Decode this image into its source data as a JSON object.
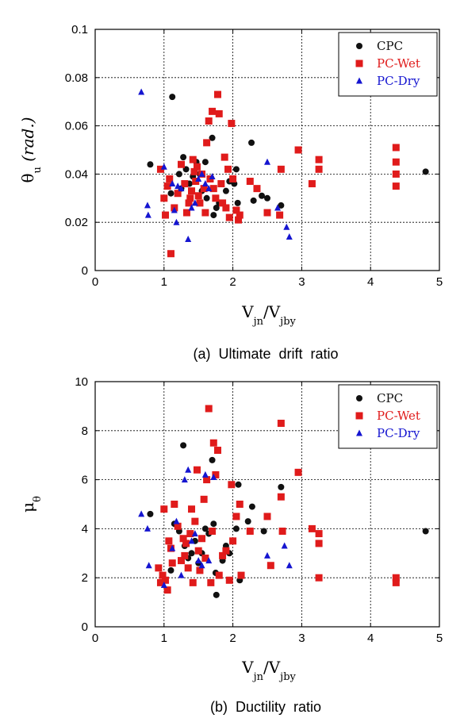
{
  "colors": {
    "CPC": "#111111",
    "PC-Wet": "#e01b1b",
    "PC-Dry": "#1515d0"
  },
  "chart_data": [
    {
      "type": "scatter",
      "caption": "(a)  Ultimate  drift  ratio",
      "xlabel": {
        "main": "V",
        "sub1": "jn",
        "mid": "/V",
        "sub2": "jby"
      },
      "ylabel": {
        "main": "θ",
        "sub": "u",
        "unit": "(rad.)"
      },
      "xlim": [
        0,
        5
      ],
      "ylim": [
        0,
        0.1
      ],
      "xticks": [
        0,
        1,
        2,
        3,
        4,
        5
      ],
      "yticks": [
        0,
        0.02,
        0.04,
        0.06,
        0.08,
        0.1
      ],
      "ytick_labels": [
        "0",
        "0.02",
        "0.04",
        "0.06",
        "0.08",
        "0.1"
      ],
      "grid": true,
      "legend": "top-right",
      "series": [
        {
          "name": "CPC",
          "marker": "circle",
          "points": [
            [
              0.8,
              0.044
            ],
            [
              1.12,
              0.072
            ],
            [
              1.22,
              0.04
            ],
            [
              1.28,
              0.047
            ],
            [
              1.32,
              0.042
            ],
            [
              1.37,
              0.036
            ],
            [
              1.42,
              0.039
            ],
            [
              1.47,
              0.045
            ],
            [
              1.52,
              0.04
            ],
            [
              1.6,
              0.045
            ],
            [
              1.62,
              0.03
            ],
            [
              1.7,
              0.055
            ],
            [
              1.72,
              0.023
            ],
            [
              1.76,
              0.026
            ],
            [
              1.8,
              0.028
            ],
            [
              1.9,
              0.033
            ],
            [
              1.95,
              0.037
            ],
            [
              2.02,
              0.036
            ],
            [
              2.05,
              0.042
            ],
            [
              2.07,
              0.028
            ],
            [
              2.27,
              0.053
            ],
            [
              2.3,
              0.029
            ],
            [
              2.42,
              0.031
            ],
            [
              2.5,
              0.03
            ],
            [
              2.7,
              0.027
            ],
            [
              1.1,
              0.032
            ],
            [
              1.25,
              0.034
            ],
            [
              1.55,
              0.033
            ],
            [
              4.8,
              0.041
            ]
          ]
        },
        {
          "name": "PC-Wet",
          "marker": "square",
          "points": [
            [
              0.95,
              0.042
            ],
            [
              1.0,
              0.03
            ],
            [
              1.02,
              0.023
            ],
            [
              1.05,
              0.035
            ],
            [
              1.08,
              0.038
            ],
            [
              1.1,
              0.007
            ],
            [
              1.15,
              0.026
            ],
            [
              1.2,
              0.032
            ],
            [
              1.25,
              0.044
            ],
            [
              1.3,
              0.036
            ],
            [
              1.33,
              0.024
            ],
            [
              1.36,
              0.028
            ],
            [
              1.38,
              0.03
            ],
            [
              1.4,
              0.033
            ],
            [
              1.42,
              0.046
            ],
            [
              1.44,
              0.041
            ],
            [
              1.46,
              0.037
            ],
            [
              1.48,
              0.043
            ],
            [
              1.5,
              0.031
            ],
            [
              1.52,
              0.028
            ],
            [
              1.55,
              0.04
            ],
            [
              1.58,
              0.034
            ],
            [
              1.6,
              0.024
            ],
            [
              1.62,
              0.053
            ],
            [
              1.65,
              0.062
            ],
            [
              1.67,
              0.038
            ],
            [
              1.7,
              0.066
            ],
            [
              1.72,
              0.034
            ],
            [
              1.75,
              0.03
            ],
            [
              1.78,
              0.073
            ],
            [
              1.8,
              0.065
            ],
            [
              1.83,
              0.036
            ],
            [
              1.85,
              0.028
            ],
            [
              1.88,
              0.047
            ],
            [
              1.9,
              0.026
            ],
            [
              1.93,
              0.042
            ],
            [
              1.95,
              0.022
            ],
            [
              1.98,
              0.061
            ],
            [
              2.0,
              0.038
            ],
            [
              2.05,
              0.025
            ],
            [
              2.08,
              0.021
            ],
            [
              2.1,
              0.023
            ],
            [
              2.25,
              0.037
            ],
            [
              2.35,
              0.034
            ],
            [
              2.5,
              0.024
            ],
            [
              2.68,
              0.023
            ],
            [
              2.7,
              0.042
            ],
            [
              2.95,
              0.05
            ],
            [
              3.15,
              0.036
            ],
            [
              3.25,
              0.046
            ],
            [
              3.25,
              0.042
            ],
            [
              4.37,
              0.051
            ],
            [
              4.37,
              0.045
            ],
            [
              4.37,
              0.04
            ],
            [
              4.37,
              0.035
            ]
          ]
        },
        {
          "name": "PC-Dry",
          "marker": "triangle",
          "points": [
            [
              0.67,
              0.074
            ],
            [
              0.76,
              0.027
            ],
            [
              0.77,
              0.023
            ],
            [
              1.0,
              0.043
            ],
            [
              1.12,
              0.036
            ],
            [
              1.15,
              0.025
            ],
            [
              1.18,
              0.02
            ],
            [
              1.2,
              0.035
            ],
            [
              1.25,
              0.034
            ],
            [
              1.35,
              0.013
            ],
            [
              1.4,
              0.026
            ],
            [
              1.45,
              0.028
            ],
            [
              1.5,
              0.038
            ],
            [
              1.55,
              0.04
            ],
            [
              1.6,
              0.036
            ],
            [
              1.65,
              0.034
            ],
            [
              1.7,
              0.039
            ],
            [
              2.5,
              0.045
            ],
            [
              2.65,
              0.026
            ],
            [
              2.78,
              0.018
            ],
            [
              2.82,
              0.014
            ]
          ]
        }
      ]
    },
    {
      "type": "scatter",
      "caption": "(b)  Ductility  ratio",
      "xlabel": {
        "main": "V",
        "sub1": "jn",
        "mid": "/V",
        "sub2": "jby"
      },
      "ylabel": {
        "main": "μ",
        "sub": "θ",
        "unit": ""
      },
      "xlim": [
        0,
        5
      ],
      "ylim": [
        0,
        10
      ],
      "xticks": [
        0,
        1,
        2,
        3,
        4,
        5
      ],
      "yticks": [
        0,
        2,
        4,
        6,
        8,
        10
      ],
      "ytick_labels": [
        "0",
        "2",
        "4",
        "6",
        "8",
        "10"
      ],
      "grid": true,
      "legend": "top-right",
      "series": [
        {
          "name": "CPC",
          "marker": "circle",
          "points": [
            [
              0.8,
              4.6
            ],
            [
              1.1,
              2.3
            ],
            [
              1.15,
              4.2
            ],
            [
              1.22,
              3.9
            ],
            [
              1.28,
              7.4
            ],
            [
              1.3,
              3.3
            ],
            [
              1.35,
              2.8
            ],
            [
              1.4,
              3.0
            ],
            [
              1.45,
              3.5
            ],
            [
              1.5,
              2.6
            ],
            [
              1.55,
              3.0
            ],
            [
              1.6,
              4.0
            ],
            [
              1.65,
              3.8
            ],
            [
              1.7,
              6.8
            ],
            [
              1.72,
              4.2
            ],
            [
              1.75,
              2.2
            ],
            [
              1.76,
              1.3
            ],
            [
              1.85,
              2.7
            ],
            [
              1.9,
              3.3
            ],
            [
              1.95,
              3.0
            ],
            [
              2.05,
              4.0
            ],
            [
              2.08,
              5.8
            ],
            [
              2.1,
              1.9
            ],
            [
              2.22,
              4.3
            ],
            [
              2.28,
              4.9
            ],
            [
              2.45,
              3.9
            ],
            [
              2.7,
              5.7
            ],
            [
              4.8,
              3.9
            ]
          ]
        },
        {
          "name": "PC-Wet",
          "marker": "square",
          "points": [
            [
              0.92,
              2.4
            ],
            [
              0.95,
              1.8
            ],
            [
              0.98,
              2.1
            ],
            [
              1.0,
              4.8
            ],
            [
              1.02,
              1.9
            ],
            [
              1.05,
              1.5
            ],
            [
              1.07,
              3.5
            ],
            [
              1.1,
              3.2
            ],
            [
              1.12,
              2.6
            ],
            [
              1.15,
              5.0
            ],
            [
              1.2,
              4.1
            ],
            [
              1.25,
              2.7
            ],
            [
              1.28,
              3.6
            ],
            [
              1.3,
              2.9
            ],
            [
              1.32,
              3.4
            ],
            [
              1.35,
              2.4
            ],
            [
              1.38,
              3.8
            ],
            [
              1.4,
              4.8
            ],
            [
              1.42,
              1.8
            ],
            [
              1.45,
              4.3
            ],
            [
              1.48,
              6.4
            ],
            [
              1.5,
              3.1
            ],
            [
              1.52,
              2.3
            ],
            [
              1.55,
              3.6
            ],
            [
              1.58,
              5.2
            ],
            [
              1.6,
              2.8
            ],
            [
              1.62,
              6.0
            ],
            [
              1.65,
              8.9
            ],
            [
              1.68,
              1.8
            ],
            [
              1.7,
              3.9
            ],
            [
              1.72,
              7.5
            ],
            [
              1.75,
              6.2
            ],
            [
              1.78,
              7.2
            ],
            [
              1.8,
              2.1
            ],
            [
              1.85,
              2.9
            ],
            [
              1.9,
              3.1
            ],
            [
              1.95,
              1.9
            ],
            [
              1.98,
              5.8
            ],
            [
              2.0,
              3.5
            ],
            [
              2.05,
              4.5
            ],
            [
              2.1,
              5.0
            ],
            [
              2.12,
              2.1
            ],
            [
              2.25,
              3.9
            ],
            [
              2.5,
              4.5
            ],
            [
              2.55,
              2.5
            ],
            [
              2.7,
              8.3
            ],
            [
              2.7,
              5.3
            ],
            [
              2.72,
              3.9
            ],
            [
              2.95,
              6.3
            ],
            [
              3.15,
              4.0
            ],
            [
              3.25,
              3.8
            ],
            [
              3.25,
              3.4
            ],
            [
              3.25,
              2.0
            ],
            [
              4.37,
              2.0
            ],
            [
              4.37,
              1.8
            ]
          ]
        },
        {
          "name": "PC-Dry",
          "marker": "triangle",
          "points": [
            [
              0.67,
              4.6
            ],
            [
              0.76,
              4.0
            ],
            [
              0.78,
              2.5
            ],
            [
              1.0,
              1.7
            ],
            [
              1.12,
              3.2
            ],
            [
              1.18,
              4.3
            ],
            [
              1.25,
              2.1
            ],
            [
              1.3,
              6.0
            ],
            [
              1.35,
              6.4
            ],
            [
              1.4,
              3.5
            ],
            [
              1.45,
              3.8
            ],
            [
              1.5,
              2.7
            ],
            [
              1.55,
              2.5
            ],
            [
              1.6,
              6.2
            ],
            [
              1.65,
              2.7
            ],
            [
              1.72,
              6.1
            ],
            [
              2.5,
              2.9
            ],
            [
              2.75,
              3.3
            ],
            [
              2.82,
              2.5
            ]
          ]
        }
      ]
    }
  ]
}
